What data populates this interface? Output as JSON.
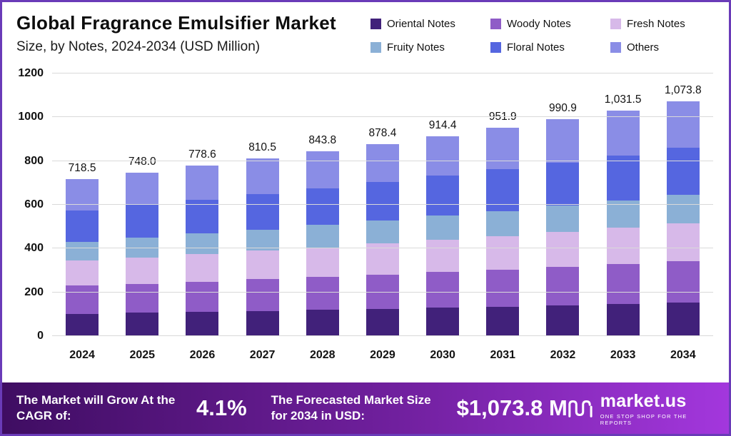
{
  "header": {
    "title": "Global Fragrance Emulsifier Market",
    "subtitle": "Size, by Notes, 2024-2034 (USD Million)"
  },
  "chart_data": {
    "type": "bar",
    "stacked": true,
    "title": "Global Fragrance Emulsifier Market Size, by Notes, 2024-2034 (USD Million)",
    "xlabel": "",
    "ylabel": "USD Million",
    "ylim": [
      0,
      1200
    ],
    "yticks": [
      0,
      200,
      400,
      600,
      800,
      1000,
      1200
    ],
    "ytick_labels": [
      "0",
      "200",
      "400",
      "600",
      "800",
      "1000",
      "1200"
    ],
    "grid": true,
    "legend_position": "top-right",
    "categories": [
      "2024",
      "2025",
      "2026",
      "2027",
      "2028",
      "2029",
      "2030",
      "2031",
      "2032",
      "2033",
      "2034"
    ],
    "totals": [
      718.5,
      748.0,
      778.6,
      810.5,
      843.8,
      878.4,
      914.4,
      951.9,
      990.9,
      1031.5,
      1073.8
    ],
    "total_labels": [
      "718.5",
      "748.0",
      "778.6",
      "810.5",
      "843.8",
      "878.4",
      "914.4",
      "951.9",
      "990.9",
      "1,031.5",
      "1,073.8"
    ],
    "series": [
      {
        "name": "Oriental Notes",
        "color": "#41217a",
        "values": [
          102.0,
          106.2,
          110.6,
          115.1,
          119.8,
          124.7,
          129.8,
          135.2,
          140.7,
          146.5,
          152.5
        ]
      },
      {
        "name": "Woody Notes",
        "color": "#8f5cc7",
        "values": [
          127.9,
          133.1,
          138.6,
          144.3,
          150.2,
          156.4,
          162.8,
          169.4,
          176.4,
          183.6,
          191.1
        ]
      },
      {
        "name": "Fresh Notes",
        "color": "#d7b9e9",
        "values": [
          115.7,
          120.4,
          125.4,
          130.5,
          135.9,
          141.4,
          147.2,
          153.3,
          159.5,
          166.1,
          172.9
        ]
      },
      {
        "name": "Fruity Notes",
        "color": "#8bb0d6",
        "values": [
          86.2,
          89.8,
          93.4,
          97.3,
          101.3,
          105.4,
          109.7,
          114.2,
          118.9,
          123.8,
          128.9
        ]
      },
      {
        "name": "Floral Notes",
        "color": "#5566e0",
        "values": [
          143.7,
          149.6,
          155.7,
          162.1,
          168.8,
          175.7,
          182.9,
          190.4,
          198.2,
          206.3,
          214.8
        ]
      },
      {
        "name": "Others",
        "color": "#8a8de6",
        "values": [
          143.0,
          148.9,
          154.9,
          161.3,
          167.9,
          174.8,
          182.0,
          189.4,
          197.2,
          205.3,
          213.7
        ]
      }
    ]
  },
  "footer": {
    "cagr_label": "The Market will Grow At the CAGR of:",
    "cagr_value": "4.1%",
    "forecast_label": "The Forecasted Market Size for 2034 in USD:",
    "forecast_value": "$1,073.8 M",
    "brand_name": "market.us",
    "brand_tagline": "ONE STOP SHOP FOR THE REPORTS"
  }
}
